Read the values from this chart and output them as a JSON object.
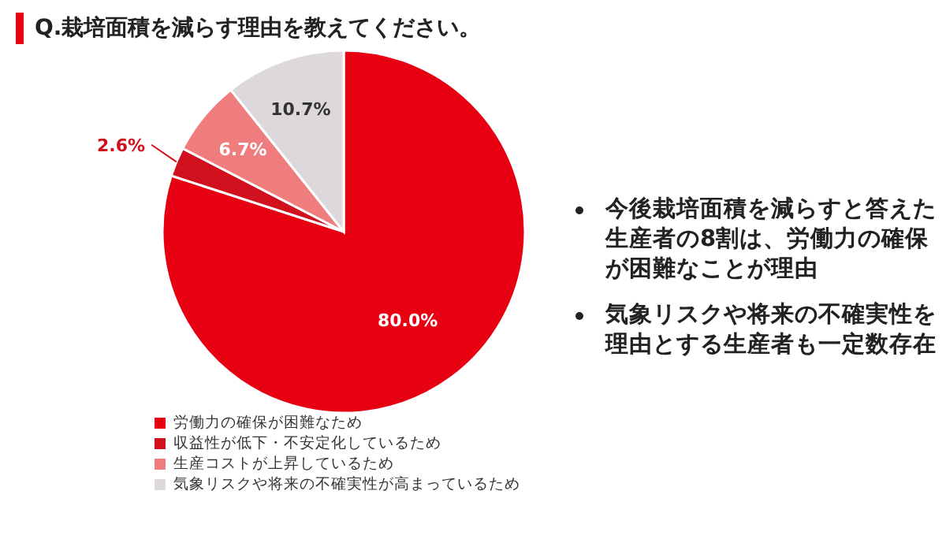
{
  "chart_data": {
    "type": "pie",
    "title": "Q.栽培面積を減らす理由を教えてください。",
    "categories": [
      "労働力の確保が困難なため",
      "収益性が低下・不安定化しているため",
      "生産コストが上昇しているため",
      "気象リスクや将来の不確実性が高まっているため"
    ],
    "values": [
      80.0,
      2.6,
      6.7,
      10.7
    ],
    "value_labels": [
      "80.0%",
      "2.6%",
      "6.7%",
      "10.7%"
    ],
    "colors": [
      "#e60012",
      "#d0101c",
      "#ef7d7d",
      "#dcd8dc"
    ],
    "legend": "bottom",
    "annotations": [
      "今後栽培面積を減らすと答えた生産者の8割は、労働力の確保が困難なことが理由",
      "気象リスクや将来の不確実性を理由とする生産者も一定数存在"
    ]
  }
}
